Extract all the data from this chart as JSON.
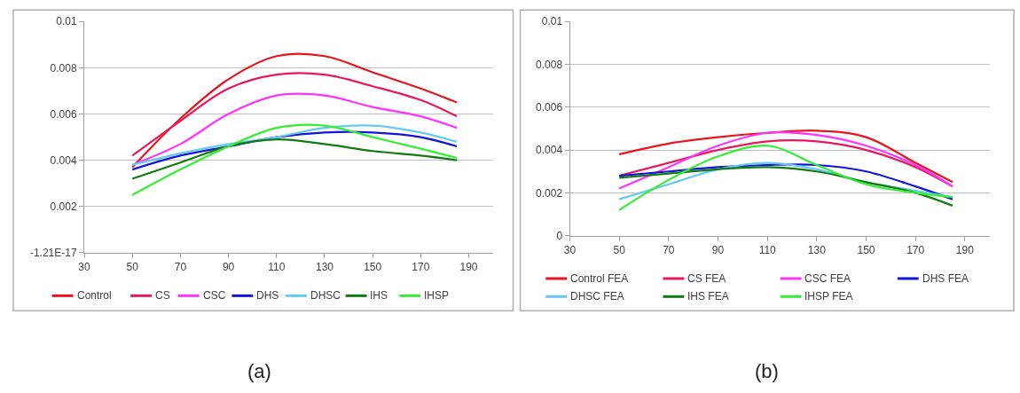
{
  "chart_data": [
    {
      "type": "line",
      "x": [
        50,
        70,
        90,
        110,
        130,
        150,
        170,
        185
      ],
      "xlim": [
        30,
        200
      ],
      "xticks": [
        30,
        50,
        70,
        90,
        110,
        130,
        150,
        170,
        190
      ],
      "ylim": [
        0,
        0.01
      ],
      "yticks": [
        {
          "value": 0,
          "label": "-1.21E-17"
        },
        0.002,
        0.004,
        0.006,
        0.008,
        0.01
      ],
      "grid": "y",
      "legend": "bottom",
      "marker": "none",
      "line_style": "solid",
      "annotations": [
        "(a)"
      ],
      "series": [
        {
          "name": "Control",
          "color": "#e8141c",
          "values": [
            0.0037,
            0.0058,
            0.0075,
            0.0085,
            0.0085,
            0.0078,
            0.0071,
            0.0065
          ]
        },
        {
          "name": "CS",
          "color": "#e8185a",
          "values": [
            0.0042,
            0.0057,
            0.0071,
            0.0077,
            0.0077,
            0.0072,
            0.0066,
            0.0059
          ]
        },
        {
          "name": "CSC",
          "color": "#ff33ff",
          "values": [
            0.0038,
            0.0047,
            0.006,
            0.0068,
            0.0068,
            0.0063,
            0.0059,
            0.0054
          ]
        },
        {
          "name": "DHS",
          "color": "#1414d8",
          "values": [
            0.0036,
            0.0042,
            0.0046,
            0.005,
            0.0052,
            0.0052,
            0.005,
            0.0046
          ]
        },
        {
          "name": "DHSC",
          "color": "#66c8f5",
          "values": [
            0.0038,
            0.0043,
            0.0047,
            0.005,
            0.0054,
            0.0055,
            0.0052,
            0.0048
          ]
        },
        {
          "name": "IHS",
          "color": "#127a12",
          "values": [
            0.0032,
            0.0039,
            0.0046,
            0.0049,
            0.0047,
            0.0044,
            0.0042,
            0.004
          ]
        },
        {
          "name": "IHSP",
          "color": "#33ee33",
          "values": [
            0.0025,
            0.0036,
            0.0046,
            0.0054,
            0.0055,
            0.005,
            0.0045,
            0.0041
          ]
        }
      ]
    },
    {
      "type": "line",
      "x": [
        50,
        70,
        90,
        110,
        130,
        150,
        170,
        185
      ],
      "xlim": [
        30,
        200
      ],
      "xticks": [
        30,
        50,
        70,
        90,
        110,
        130,
        150,
        170,
        190
      ],
      "ylim": [
        0,
        0.01
      ],
      "yticks": [
        0,
        0.002,
        0.004,
        0.006,
        0.008,
        0.01
      ],
      "grid": "y",
      "legend": "bottom",
      "marker": "none",
      "line_style": "solid",
      "annotations": [
        "(b)"
      ],
      "series": [
        {
          "name": "Control FEA",
          "color": "#e8141c",
          "values": [
            0.0038,
            0.0043,
            0.0046,
            0.0048,
            0.0049,
            0.0046,
            0.0034,
            0.0025
          ]
        },
        {
          "name": "CS FEA",
          "color": "#e8185a",
          "values": [
            0.0028,
            0.0034,
            0.004,
            0.0044,
            0.0044,
            0.004,
            0.0032,
            0.0023
          ]
        },
        {
          "name": "CSC FEA",
          "color": "#ff33ff",
          "values": [
            0.0022,
            0.0032,
            0.0042,
            0.0048,
            0.0047,
            0.0042,
            0.0033,
            0.0023
          ]
        },
        {
          "name": "DHS FEA",
          "color": "#1414d8",
          "values": [
            0.0028,
            0.003,
            0.0032,
            0.0033,
            0.0033,
            0.003,
            0.0023,
            0.0017
          ]
        },
        {
          "name": "DHSC FEA",
          "color": "#66c8f5",
          "values": [
            0.0017,
            0.0024,
            0.0031,
            0.0034,
            0.0031,
            0.0025,
            0.0021,
            0.0018
          ]
        },
        {
          "name": "IHS FEA",
          "color": "#127a12",
          "values": [
            0.0027,
            0.0029,
            0.0031,
            0.0032,
            0.003,
            0.0025,
            0.002,
            0.0014
          ]
        },
        {
          "name": "IHSP FEA",
          "color": "#33ee33",
          "values": [
            0.0012,
            0.0026,
            0.0037,
            0.0042,
            0.0033,
            0.0024,
            0.002,
            0.0018
          ]
        }
      ]
    }
  ]
}
